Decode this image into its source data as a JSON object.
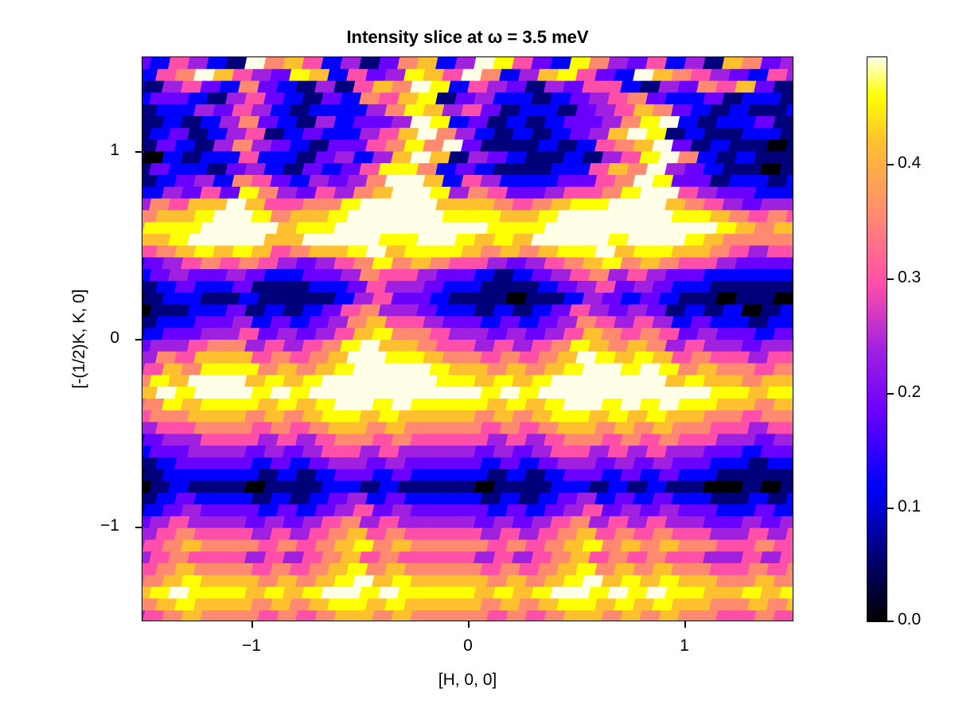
{
  "chart_data": {
    "type": "heatmap",
    "title": "Intensity slice at ω = 3.5 meV",
    "xlabel": "[H, 0, 0]",
    "ylabel": "[-(1/2)K, K, 0]",
    "xlim": [
      -1.5,
      1.5
    ],
    "ylim": [
      -1.5,
      1.5
    ],
    "xticks": [
      {
        "value": -1,
        "label": "−1"
      },
      {
        "value": 0,
        "label": "0"
      },
      {
        "value": 1,
        "label": "1"
      }
    ],
    "yticks": [
      {
        "value": 1,
        "label": "1"
      },
      {
        "value": 0,
        "label": "0"
      },
      {
        "value": -1,
        "label": "−1"
      }
    ],
    "colorbar": {
      "range": [
        0.0,
        0.49
      ],
      "colormap": "gnuplot2",
      "ticks": [
        {
          "value": 0.0,
          "label": "0.0"
        },
        {
          "value": 0.1,
          "label": "0.1"
        },
        {
          "value": 0.2,
          "label": "0.2"
        },
        {
          "value": 0.3,
          "label": "0.3"
        },
        {
          "value": 0.4,
          "label": "0.4"
        }
      ]
    },
    "grid": {
      "cell_shape": "sheared parallelogram",
      "rows": 48,
      "cols": 36,
      "level_step": 0.055,
      "levels_note": "each digit is a quantized intensity level 0-9; value = level × level_step; rows listed top to bottom",
      "matrix": [
        "432542196752413672498532864352417634",
        "325697543872534875962478532976543254",
        "214532632141576982543143552143657312",
        "123321453213265781342212345632231221",
        "212243542122246874531221345763212112",
        "112124632142334982312123346892122311",
        "112312451232245796421212347981211221",
        "013214643213356869311121256793121101",
        "102122522134247971432112145896212112",
        "013221342132358862321112257694321101",
        "112342653243469972542223356983312212",
        "224353864354679984653345568995433223",
        "346577975566899997776567889997654344",
        "567789986778999998887789999998876565",
        "688899997889999999988899999999987676",
        "577899997799998899878799998999876666",
        "456787875677897888767678897887765455",
        "234565654345686765543456786765543334",
        "123433432233465543321234564543322222",
        "112322311122354432211123453432211111",
        "012211211112453321110112432321101101",
        "101122312123564432212123543431212012",
        "012233423234675543323234654542322122",
        "123344534345786654434345765653433233",
        "234456645456897765545456876764544344",
        "346577756567998876656567987875655455",
        "457688867678999987767678998986766566",
        "568799978789999998878789999997877677",
        "679899989899999999989899999999988788",
        "568788878789989888878789989898877677",
        "456677767678878777767678878787766566",
        "345566656567767666656567767676655455",
        "234455545456656555545456656565544344",
        "123344434345545444434345545454433233",
        "112333323234434333323234434343322122",
        "012222212123323222212123323232211111",
        "101211101112212111101112212121100101",
        "012322212123423222212123423232211212",
        "123433323234534333323234534343322323",
        "234544434345645444434345645454433434",
        "345655545456756555545456756565544545",
        "456766656567867666656567867676655656",
        "345655545456756555545456756565544545",
        "456766656567867666656567867676655656",
        "567877767678978777767678978787766767",
        "678988878789989888878789989898877878",
        "567877767678878777767678878787766767",
        "456766656567767666656567767676655656"
      ]
    }
  },
  "colors": {
    "background": "#ffffff",
    "frame": "#000000",
    "colormap_stops": [
      "#000000",
      "#00007a",
      "#0000ff",
      "#6a00ff",
      "#a020e0",
      "#ff4fa8",
      "#ff8a70",
      "#ffc030",
      "#ffff00",
      "#ffffe8"
    ]
  }
}
